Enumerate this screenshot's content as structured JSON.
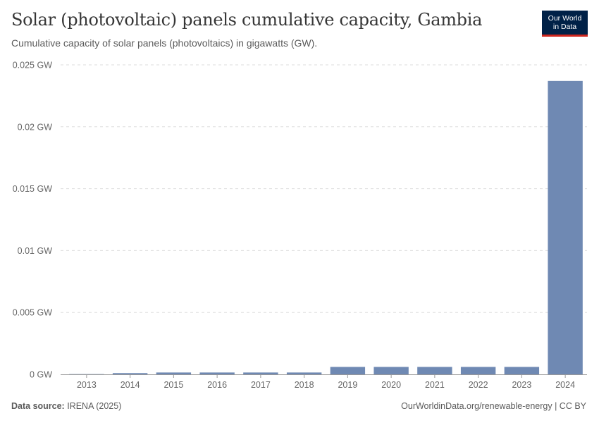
{
  "header": {
    "title": "Solar (photovoltaic) panels cumulative capacity, Gambia",
    "subtitle": "Cumulative capacity of solar panels (photovoltaics) in gigawatts (GW)."
  },
  "logo": {
    "line1": "Our World",
    "line2": "in Data",
    "bg_color": "#002147",
    "accent_color": "#ce261e"
  },
  "footer": {
    "source_label": "Data source:",
    "source_value": "IRENA (2025)",
    "link_text": "OurWorldinData.org/renewable-energy | CC BY"
  },
  "chart_data": {
    "type": "bar",
    "title": "Solar (photovoltaic) panels cumulative capacity, Gambia",
    "xlabel": "",
    "ylabel": "",
    "categories": [
      "2013",
      "2014",
      "2015",
      "2016",
      "2017",
      "2018",
      "2019",
      "2020",
      "2021",
      "2022",
      "2023",
      "2024"
    ],
    "values": [
      2e-05,
      0.0001,
      0.00015,
      0.00015,
      0.00015,
      0.00015,
      0.0006,
      0.0006,
      0.0006,
      0.0006,
      0.0006,
      0.0237
    ],
    "ylim": [
      0,
      0.025
    ],
    "yticks": [
      0,
      0.005,
      0.01,
      0.015,
      0.02,
      0.025
    ],
    "ytick_labels": [
      "0 GW",
      "0.005 GW",
      "0.01 GW",
      "0.015 GW",
      "0.02 GW",
      "0.025 GW"
    ],
    "grid": true,
    "bar_color": "#6f89b3"
  }
}
